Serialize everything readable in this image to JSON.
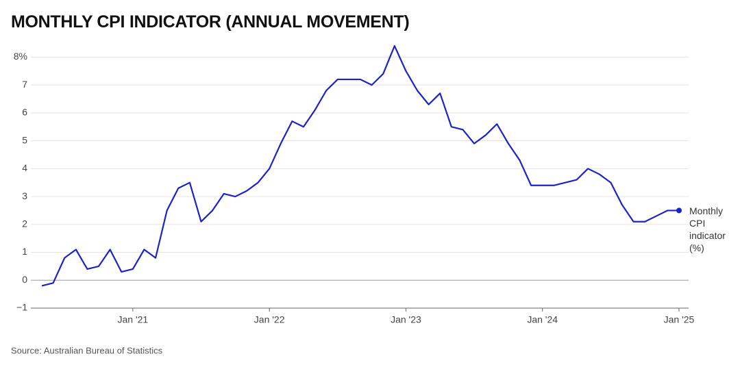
{
  "chart_data": {
    "type": "line",
    "title": "MONTHLY CPI INDICATOR (ANNUAL MOVEMENT)",
    "source": "Source: Australian Bureau of Statistics",
    "categories": [
      null,
      null,
      null,
      null,
      null,
      null,
      null,
      null,
      "Jan '21",
      null,
      null,
      null,
      null,
      null,
      null,
      null,
      null,
      null,
      null,
      null,
      "Jan '22",
      null,
      null,
      null,
      null,
      null,
      null,
      null,
      null,
      null,
      null,
      null,
      "Jan '23",
      null,
      null,
      null,
      null,
      null,
      null,
      null,
      null,
      null,
      null,
      null,
      "Jan '24",
      null,
      null,
      null,
      null,
      null,
      null,
      null,
      null,
      null,
      null,
      null,
      "Jan '25"
    ],
    "series": [
      {
        "name": "Monthly CPI indicator (%)",
        "color": "#1c22c8",
        "values": [
          -0.2,
          -0.1,
          0.8,
          1.1,
          0.4,
          0.5,
          1.1,
          0.3,
          0.4,
          1.1,
          0.8,
          2.5,
          3.3,
          3.5,
          2.1,
          2.5,
          3.1,
          3.0,
          3.2,
          3.5,
          4.0,
          4.9,
          5.7,
          5.5,
          6.1,
          6.8,
          7.2,
          7.2,
          7.2,
          7.0,
          7.4,
          8.4,
          7.5,
          6.8,
          6.3,
          6.7,
          5.5,
          5.4,
          4.9,
          5.2,
          5.6,
          4.9,
          4.3,
          3.4,
          3.4,
          3.4,
          3.5,
          3.6,
          4.0,
          3.8,
          3.5,
          2.7,
          2.1,
          2.1,
          2.3,
          2.5,
          2.5
        ]
      }
    ],
    "ylim": [
      -1,
      8.5
    ],
    "yticks": [
      {
        "value": -1,
        "label": "−1"
      },
      0,
      1,
      2,
      3,
      4,
      5,
      6,
      7,
      {
        "value": 8,
        "label": "8%"
      }
    ],
    "grid": true
  }
}
